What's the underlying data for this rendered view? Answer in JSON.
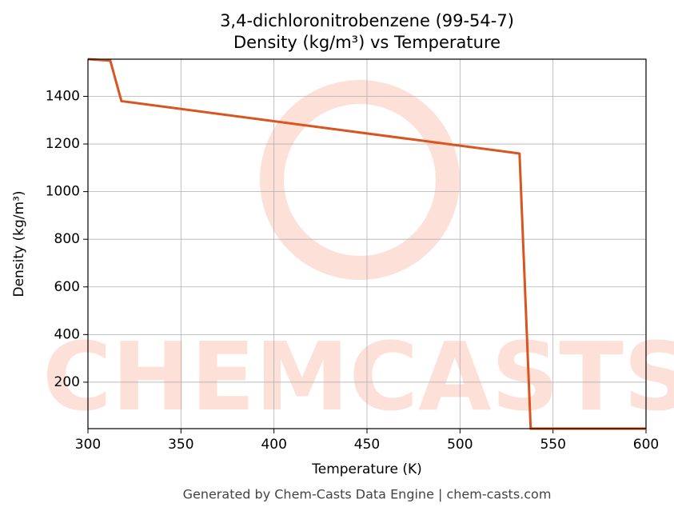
{
  "chart_data": {
    "type": "line",
    "title": "3,4-dichloronitrobenzene (99-54-7)",
    "subtitle": "Density (kg/m³) vs Temperature",
    "x_label": "Temperature (K)",
    "y_label": "Density (kg/m³)",
    "watermark": "CHEMCASTS",
    "footer": "Generated by Chem-Casts Data Engine | chem-casts.com",
    "x": [
      300,
      312,
      318,
      532,
      538,
      600
    ],
    "series": [
      {
        "name": "Density",
        "color": "#d9541e",
        "values": [
          1556,
          1550,
          1380,
          1160,
          5,
          5
        ]
      }
    ],
    "xlim": [
      300,
      600
    ],
    "xticks": [
      300,
      350,
      400,
      450,
      500,
      550,
      600
    ],
    "ylim": [
      5,
      1556
    ],
    "yticks": [
      200,
      400,
      600,
      800,
      1000,
      1200,
      1400
    ],
    "grid": true
  }
}
